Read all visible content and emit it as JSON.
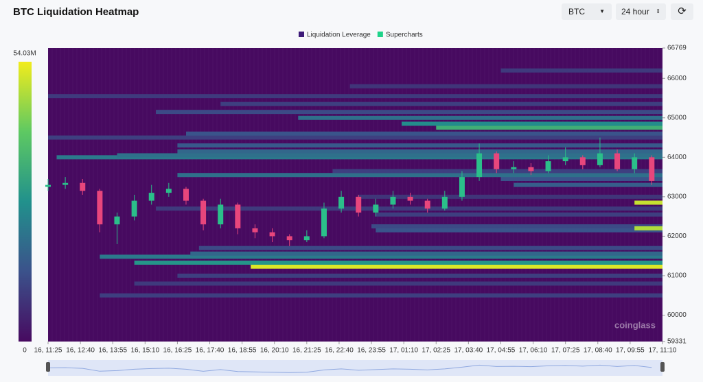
{
  "controls": [
    "BTC",
    "24 hour"
  ],
  "chart_data": {
    "type": "heatmap",
    "title": "BTC Liquidation Heatmap",
    "legend": [
      {
        "name": "Liquidation Leverage",
        "color": "#3d1a78"
      },
      {
        "name": "Supercharts",
        "color": "#1fd38a"
      }
    ],
    "watermark": "coinglass",
    "background": "#470a60",
    "colorscale": [
      "#470a60",
      "#3b528b",
      "#21918c",
      "#5ec962",
      "#f2ec1c"
    ],
    "zlim": [
      0,
      54.03
    ],
    "zticks": [
      0,
      {
        "value": 54.03,
        "label": "54.03M"
      }
    ],
    "xlim": [
      0,
      1425
    ],
    "xticks": [
      {
        "value": 0,
        "label": "16, 11:25"
      },
      {
        "value": 75,
        "label": "16, 12:40"
      },
      {
        "value": 150,
        "label": "16, 13:55"
      },
      {
        "value": 225,
        "label": "16, 15:10"
      },
      {
        "value": 300,
        "label": "16, 16:25"
      },
      {
        "value": 375,
        "label": "16, 17:40"
      },
      {
        "value": 450,
        "label": "16, 18:55"
      },
      {
        "value": 525,
        "label": "16, 20:10"
      },
      {
        "value": 600,
        "label": "16, 21:25"
      },
      {
        "value": 675,
        "label": "16, 22:40"
      },
      {
        "value": 750,
        "label": "16, 23:55"
      },
      {
        "value": 825,
        "label": "17, 01:10"
      },
      {
        "value": 900,
        "label": "17, 02:25"
      },
      {
        "value": 975,
        "label": "17, 03:40"
      },
      {
        "value": 1050,
        "label": "17, 04:55"
      },
      {
        "value": 1125,
        "label": "17, 06:10"
      },
      {
        "value": 1200,
        "label": "17, 07:25"
      },
      {
        "value": 1275,
        "label": "17, 08:40"
      },
      {
        "value": 1350,
        "label": "17, 09:55"
      },
      {
        "value": 1425,
        "label": "17, 11:10"
      }
    ],
    "ylim": [
      59331,
      66769
    ],
    "yticks": [
      59331,
      60000,
      61000,
      62000,
      63000,
      64000,
      65000,
      66000,
      66769
    ],
    "bands": [
      {
        "price": 61230,
        "start": 470,
        "value": 52
      },
      {
        "price": 61330,
        "start": 200,
        "value": 28
      },
      {
        "price": 61480,
        "start": 120,
        "value": 22
      },
      {
        "price": 61560,
        "start": 330,
        "value": 18
      },
      {
        "price": 61700,
        "start": 350,
        "value": 12
      },
      {
        "price": 60500,
        "start": 120,
        "value": 10
      },
      {
        "price": 60800,
        "start": 200,
        "value": 9
      },
      {
        "price": 61000,
        "start": 300,
        "value": 10
      },
      {
        "price": 62150,
        "start": 760,
        "value": 14
      },
      {
        "price": 62250,
        "start": 750,
        "value": 12
      },
      {
        "price": 62850,
        "start": 1360,
        "value": 50
      },
      {
        "price": 62200,
        "start": 1360,
        "value": 48
      },
      {
        "price": 62550,
        "start": 760,
        "value": 10
      },
      {
        "price": 63000,
        "start": 720,
        "value": 8
      },
      {
        "price": 63300,
        "start": 1080,
        "value": 16
      },
      {
        "price": 63450,
        "start": 1050,
        "value": 14
      },
      {
        "price": 63550,
        "start": 300,
        "value": 20
      },
      {
        "price": 63650,
        "start": 660,
        "value": 10
      },
      {
        "price": 64000,
        "start": 20,
        "value": 22
      },
      {
        "price": 64050,
        "start": 160,
        "value": 20
      },
      {
        "price": 64150,
        "start": 300,
        "value": 18
      },
      {
        "price": 64300,
        "start": 300,
        "value": 15
      },
      {
        "price": 64500,
        "start": 0,
        "value": 10
      },
      {
        "price": 64600,
        "start": 320,
        "value": 14
      },
      {
        "price": 64750,
        "start": 900,
        "value": 34
      },
      {
        "price": 64850,
        "start": 820,
        "value": 26
      },
      {
        "price": 65000,
        "start": 580,
        "value": 20
      },
      {
        "price": 65150,
        "start": 250,
        "value": 12
      },
      {
        "price": 65350,
        "start": 400,
        "value": 10
      },
      {
        "price": 65550,
        "start": 0,
        "value": 9
      },
      {
        "price": 65800,
        "start": 700,
        "value": 8
      },
      {
        "price": 66200,
        "start": 1050,
        "value": 9
      },
      {
        "price": 62700,
        "start": 250,
        "value": 9
      }
    ],
    "candles": {
      "up_color": "#2bbf8a",
      "down_color": "#e8467c",
      "x": [
        0,
        40,
        80,
        120,
        160,
        200,
        240,
        280,
        320,
        360,
        400,
        440,
        480,
        520,
        560,
        600,
        640,
        680,
        720,
        760,
        800,
        840,
        880,
        920,
        960,
        1000,
        1040,
        1080,
        1120,
        1160,
        1200,
        1240,
        1280,
        1320,
        1360,
        1400
      ],
      "open": [
        63250,
        63300,
        63350,
        63150,
        62300,
        62500,
        62900,
        63100,
        63200,
        62900,
        62300,
        62800,
        62200,
        62100,
        62000,
        61900,
        62000,
        62700,
        63000,
        62600,
        62800,
        63000,
        62900,
        62700,
        63000,
        63500,
        64100,
        63700,
        63750,
        63650,
        63900,
        64000,
        63800,
        64100,
        63700,
        64000
      ],
      "close": [
        63300,
        63350,
        63150,
        62300,
        62500,
        62900,
        63100,
        63200,
        62900,
        62300,
        62800,
        62200,
        62100,
        62000,
        61900,
        62000,
        62700,
        63000,
        62600,
        62800,
        63000,
        62900,
        62700,
        63000,
        63500,
        64100,
        63700,
        63750,
        63650,
        63900,
        64000,
        63800,
        64100,
        63700,
        64000,
        63400
      ],
      "high": [
        63450,
        63500,
        63450,
        63200,
        62600,
        63050,
        63300,
        63350,
        63250,
        62950,
        62950,
        62850,
        62300,
        62200,
        62050,
        62150,
        62850,
        63150,
        63050,
        62950,
        63150,
        63100,
        62950,
        63150,
        63650,
        64350,
        64150,
        63900,
        63850,
        64050,
        64250,
        64050,
        64500,
        64200,
        64100,
        64050
      ],
      "low": [
        63150,
        63200,
        63050,
        62100,
        61800,
        62400,
        62800,
        63000,
        62800,
        62150,
        62200,
        62050,
        61950,
        61850,
        61750,
        61850,
        61950,
        62600,
        62500,
        62500,
        62700,
        62800,
        62600,
        62650,
        62900,
        63400,
        63600,
        63600,
        63550,
        63600,
        63800,
        63700,
        63750,
        63650,
        63600,
        63300
      ]
    }
  }
}
